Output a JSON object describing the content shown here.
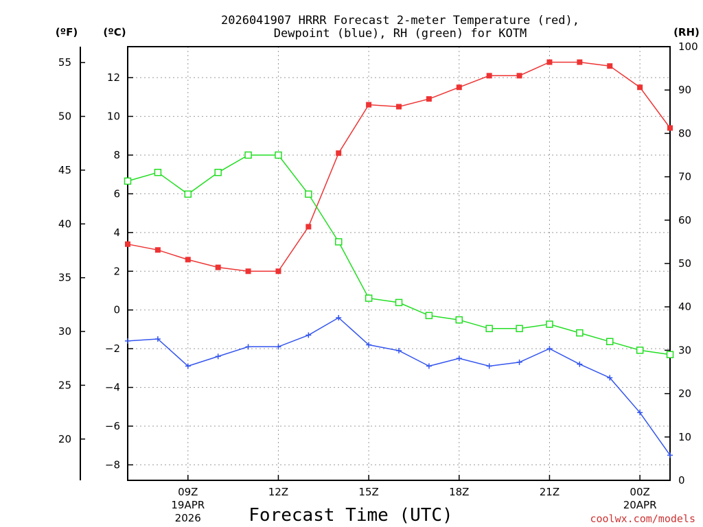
{
  "chart_data": {
    "type": "line",
    "title_line1": "2026041907 HRRR Forecast 2-meter Temperature (red),",
    "title_line2": "Dewpoint (blue), RH (green) for KOTM",
    "xlabel": "Forecast Time (UTC)",
    "credit": "coolwx.com/models",
    "units": {
      "fahrenheit": "(ºF)",
      "celsius": "(ºC)",
      "rh": "(RH)"
    },
    "x_hours": [
      7,
      8,
      9,
      10,
      11,
      12,
      13,
      14,
      15,
      16,
      17,
      18,
      19,
      20,
      21,
      22,
      23,
      24,
      25
    ],
    "x_range": [
      7,
      25
    ],
    "x_ticks": [
      {
        "hour": 9,
        "label": "09Z",
        "sub1": "19APR",
        "sub2": "2026"
      },
      {
        "hour": 12,
        "label": "12Z",
        "sub1": "",
        "sub2": ""
      },
      {
        "hour": 15,
        "label": "15Z",
        "sub1": "",
        "sub2": ""
      },
      {
        "hour": 18,
        "label": "18Z",
        "sub1": "",
        "sub2": ""
      },
      {
        "hour": 21,
        "label": "21Z",
        "sub1": "",
        "sub2": ""
      },
      {
        "hour": 24,
        "label": "00Z",
        "sub1": "20APR",
        "sub2": ""
      }
    ],
    "y_celsius_range": [
      -8.8,
      13.6
    ],
    "y_celsius_ticks": [
      -8,
      -6,
      -4,
      -2,
      0,
      2,
      4,
      6,
      8,
      10,
      12
    ],
    "y_fahrenheit_ticks": [
      20,
      25,
      30,
      35,
      40,
      45,
      50,
      55
    ],
    "y_rh_range": [
      0,
      100
    ],
    "y_rh_ticks": [
      0,
      10,
      20,
      30,
      40,
      50,
      60,
      70,
      80,
      90,
      100
    ],
    "colors": {
      "temperature": "#ee3333",
      "dewpoint": "#3355ee",
      "rh": "#22dd22",
      "grid": "#999999",
      "credit": "#cc3333"
    },
    "series": [
      {
        "name": "Temperature",
        "unit": "C",
        "color": "#ee3333",
        "marker": "filled-square",
        "values": [
          3.4,
          3.1,
          2.6,
          2.2,
          2.0,
          2.0,
          4.3,
          8.1,
          10.6,
          10.5,
          10.9,
          11.5,
          12.1,
          12.1,
          12.8,
          12.8,
          12.6,
          11.5,
          9.4
        ]
      },
      {
        "name": "Dewpoint",
        "unit": "C",
        "color": "#3355ee",
        "marker": "plus",
        "values": [
          -1.6,
          -1.5,
          -2.9,
          -2.4,
          -1.9,
          -1.9,
          -1.3,
          -0.4,
          -1.8,
          -2.1,
          -2.9,
          -2.5,
          -2.9,
          -2.7,
          -2.0,
          -2.8,
          -3.5,
          -5.3,
          -7.5
        ]
      },
      {
        "name": "RH",
        "unit": "%",
        "color": "#22dd22",
        "marker": "open-square",
        "values": [
          69,
          71,
          66,
          71,
          75,
          75,
          66,
          55,
          42,
          41,
          38,
          37,
          35,
          35,
          36,
          34,
          32,
          30,
          29
        ]
      }
    ]
  }
}
